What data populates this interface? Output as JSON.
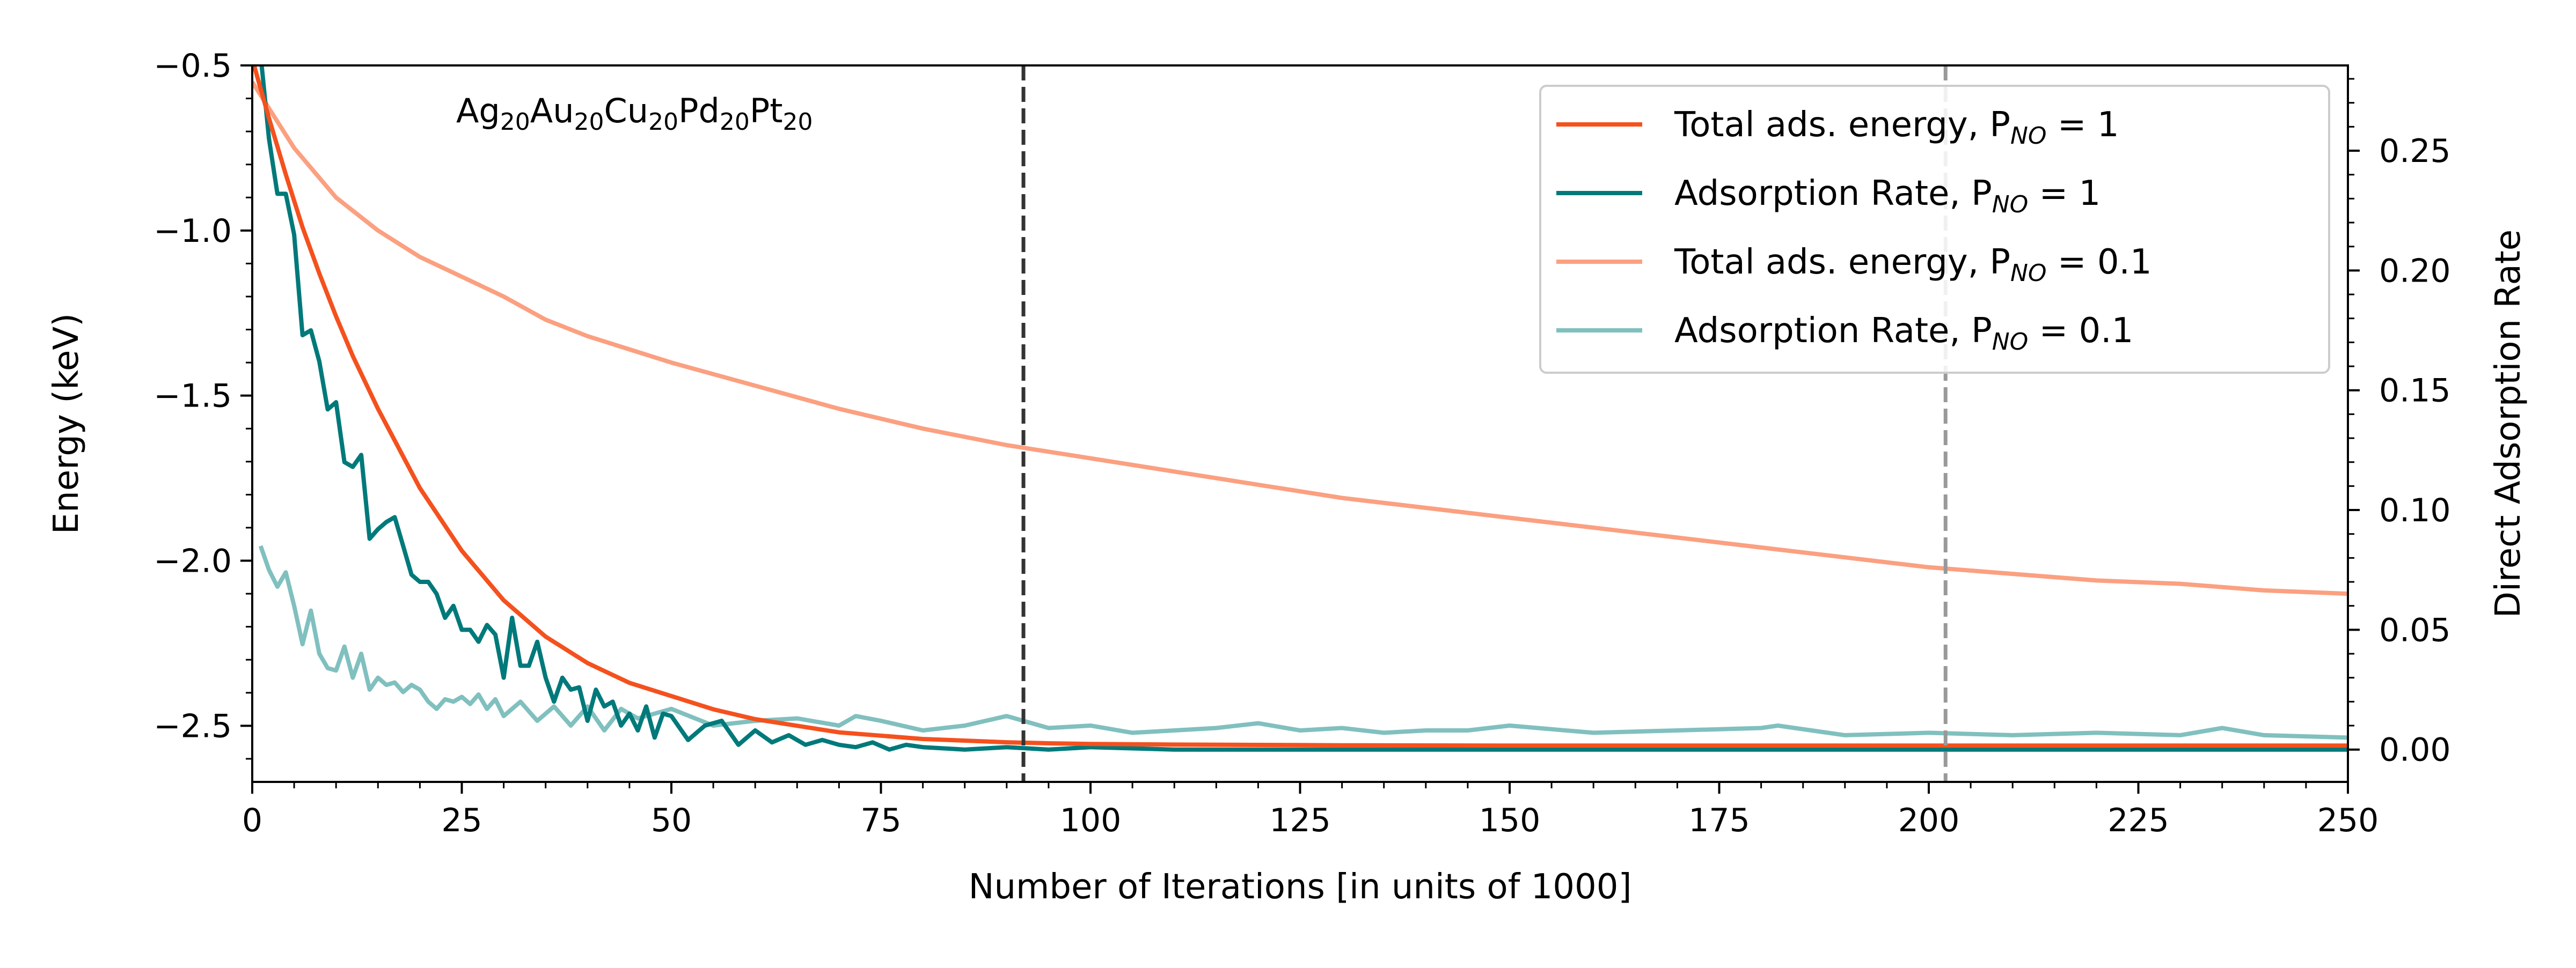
{
  "chart_data": {
    "type": "line",
    "annotation": {
      "parts": [
        {
          "text": "Ag",
          "sub": "20"
        },
        {
          "text": "Au",
          "sub": "20"
        },
        {
          "text": "Cu",
          "sub": "20"
        },
        {
          "text": "Pd",
          "sub": "20"
        },
        {
          "text": "Pt",
          "sub": "20"
        }
      ]
    },
    "xlabel": "Number of Iterations [in units of 1000]",
    "ylabel_left": "Energy (keV)",
    "ylabel_right": "Direct Adsorption Rate",
    "xlim": [
      0,
      250
    ],
    "ylim_left": [
      -2.67,
      -0.5
    ],
    "ylim_right": [
      -0.0135,
      0.2856
    ],
    "x_ticks": [
      0,
      25,
      50,
      75,
      100,
      125,
      150,
      175,
      200,
      225,
      250
    ],
    "x_tick_labels": [
      "0",
      "25",
      "50",
      "75",
      "100",
      "125",
      "150",
      "175",
      "200",
      "225",
      "250"
    ],
    "y_left_ticks": [
      -0.5,
      -1.0,
      -1.5,
      -2.0,
      -2.5
    ],
    "y_left_tick_labels": [
      "−0.5",
      "−1.0",
      "−1.5",
      "−2.0",
      "−2.5"
    ],
    "y_right_ticks": [
      0.0,
      0.05,
      0.1,
      0.15,
      0.2,
      0.25
    ],
    "y_right_tick_labels": [
      "0.00",
      "0.05",
      "0.10",
      "0.15",
      "0.20",
      "0.25"
    ],
    "vlines": [
      {
        "x": 92,
        "color": "#333333"
      },
      {
        "x": 202,
        "color": "#999999"
      }
    ],
    "legend_position": "top-right",
    "series": [
      {
        "name": "Total ads. energy, P",
        "subscript": "NO",
        "suffix": " = 1",
        "axis": "left",
        "color": "#F4511E",
        "x": [
          0,
          2,
          4,
          6,
          8,
          10,
          12,
          15,
          20,
          25,
          30,
          35,
          40,
          45,
          50,
          55,
          60,
          65,
          70,
          75,
          80,
          85,
          90,
          95,
          100,
          110,
          120,
          130,
          150,
          175,
          200,
          225,
          250
        ],
        "y": [
          -0.48,
          -0.66,
          -0.83,
          -0.99,
          -1.13,
          -1.26,
          -1.38,
          -1.54,
          -1.78,
          -1.97,
          -2.12,
          -2.23,
          -2.31,
          -2.37,
          -2.41,
          -2.45,
          -2.48,
          -2.5,
          -2.52,
          -2.53,
          -2.54,
          -2.545,
          -2.55,
          -2.553,
          -2.555,
          -2.557,
          -2.558,
          -2.559,
          -2.56,
          -2.56,
          -2.56,
          -2.56,
          -2.56
        ]
      },
      {
        "name": "Adsorption Rate, P",
        "subscript": "NO",
        "suffix": " = 1",
        "axis": "right",
        "color": "#00797A",
        "x": [
          0,
          1,
          2,
          3,
          4,
          5,
          6,
          7,
          8,
          9,
          10,
          11,
          12,
          13,
          14,
          15,
          16,
          17,
          18,
          19,
          20,
          21,
          22,
          23,
          24,
          25,
          26,
          27,
          28,
          29,
          30,
          31,
          32,
          33,
          34,
          35,
          36,
          37,
          38,
          39,
          40,
          41,
          42,
          43,
          44,
          45,
          46,
          47,
          48,
          49,
          50,
          52,
          54,
          56,
          58,
          60,
          62,
          64,
          66,
          68,
          70,
          72,
          74,
          76,
          78,
          80,
          85,
          90,
          95,
          100,
          110,
          120,
          130,
          140,
          150,
          175,
          200,
          225,
          250
        ],
        "y": [
          0.3,
          0.29,
          0.255,
          0.232,
          0.232,
          0.215,
          0.173,
          0.175,
          0.162,
          0.142,
          0.145,
          0.12,
          0.118,
          0.123,
          0.088,
          0.092,
          0.095,
          0.097,
          0.085,
          0.073,
          0.07,
          0.07,
          0.065,
          0.055,
          0.06,
          0.05,
          0.05,
          0.045,
          0.052,
          0.048,
          0.03,
          0.055,
          0.035,
          0.035,
          0.045,
          0.03,
          0.02,
          0.03,
          0.025,
          0.026,
          0.012,
          0.025,
          0.018,
          0.02,
          0.01,
          0.015,
          0.008,
          0.018,
          0.005,
          0.015,
          0.014,
          0.004,
          0.01,
          0.012,
          0.002,
          0.008,
          0.003,
          0.006,
          0.002,
          0.004,
          0.002,
          0.001,
          0.003,
          0.0,
          0.002,
          0.001,
          0.0,
          0.001,
          0.0,
          0.001,
          0.0,
          0.0,
          0.0,
          0.0,
          0.0,
          0.0,
          0.0,
          0.0,
          0.0
        ]
      },
      {
        "name": "Total ads. energy, P",
        "subscript": "NO",
        "suffix": " = 0.1",
        "axis": "left",
        "color": "#FBA080",
        "x": [
          0,
          5,
          10,
          15,
          20,
          25,
          30,
          35,
          40,
          45,
          50,
          60,
          70,
          80,
          90,
          100,
          110,
          120,
          130,
          140,
          150,
          160,
          170,
          180,
          190,
          200,
          210,
          220,
          230,
          240,
          250
        ],
        "y": [
          -0.55,
          -0.75,
          -0.9,
          -1.0,
          -1.08,
          -1.14,
          -1.2,
          -1.27,
          -1.32,
          -1.36,
          -1.4,
          -1.47,
          -1.54,
          -1.6,
          -1.65,
          -1.69,
          -1.73,
          -1.77,
          -1.81,
          -1.84,
          -1.87,
          -1.9,
          -1.93,
          -1.96,
          -1.99,
          -2.02,
          -2.04,
          -2.06,
          -2.07,
          -2.09,
          -2.1
        ]
      },
      {
        "name": "Adsorption Rate, P",
        "subscript": "NO",
        "suffix": " = 0.1",
        "axis": "right",
        "color": "#80C0BF",
        "x": [
          1,
          2,
          3,
          4,
          5,
          6,
          7,
          8,
          9,
          10,
          11,
          12,
          13,
          14,
          15,
          16,
          17,
          18,
          19,
          20,
          21,
          22,
          23,
          24,
          25,
          26,
          27,
          28,
          29,
          30,
          32,
          34,
          36,
          38,
          40,
          42,
          44,
          46,
          48,
          50,
          55,
          60,
          65,
          70,
          72,
          75,
          80,
          85,
          90,
          95,
          100,
          105,
          110,
          115,
          120,
          125,
          130,
          135,
          140,
          145,
          150,
          160,
          170,
          180,
          182,
          190,
          200,
          210,
          220,
          230,
          235,
          240,
          250
        ],
        "y": [
          0.085,
          0.075,
          0.068,
          0.074,
          0.06,
          0.044,
          0.058,
          0.04,
          0.034,
          0.033,
          0.043,
          0.03,
          0.04,
          0.025,
          0.03,
          0.027,
          0.028,
          0.024,
          0.027,
          0.025,
          0.02,
          0.017,
          0.021,
          0.02,
          0.022,
          0.019,
          0.023,
          0.017,
          0.021,
          0.014,
          0.02,
          0.012,
          0.018,
          0.01,
          0.018,
          0.008,
          0.017,
          0.013,
          0.015,
          0.017,
          0.01,
          0.012,
          0.013,
          0.01,
          0.014,
          0.012,
          0.008,
          0.01,
          0.014,
          0.009,
          0.01,
          0.007,
          0.008,
          0.009,
          0.011,
          0.008,
          0.009,
          0.007,
          0.008,
          0.008,
          0.01,
          0.007,
          0.008,
          0.009,
          0.01,
          0.006,
          0.007,
          0.006,
          0.007,
          0.006,
          0.009,
          0.006,
          0.005
        ]
      }
    ]
  }
}
